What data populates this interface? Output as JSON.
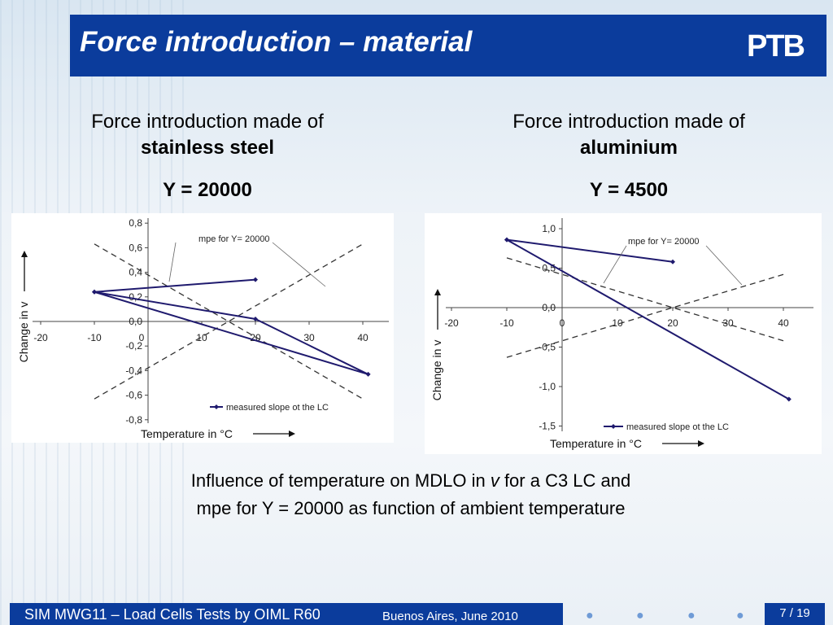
{
  "header": {
    "title": "Force introduction – material",
    "logo": "PTB"
  },
  "left": {
    "caption_line1": "Force introduction made of",
    "caption_line2": "stainless steel",
    "y_value": "Y = 20000"
  },
  "right": {
    "caption_line1": "Force introduction made of",
    "caption_line2": "aluminium",
    "y_value": "Y =  4500"
  },
  "caption": {
    "line1_a": "Influence of temperature on MDLO in ",
    "line1_v": "v",
    "line1_b": " for a C3 LC and",
    "line2": "mpe for Y = 20000 as function of ambient temperature"
  },
  "footer": {
    "left": "SIM MWG11 – Load Cells Tests by OIML R60",
    "mid": "Buenos Aires, June 2010",
    "page": "7 / 19"
  },
  "colors": {
    "title_bar": "#0b3c9c",
    "measured": "#1f1a6e"
  },
  "chart_data": [
    {
      "type": "line",
      "title": "",
      "xlabel": "Temperature in °C",
      "ylabel": "Change in v",
      "xlim": [
        -20,
        45
      ],
      "ylim": [
        -0.8,
        0.8
      ],
      "xticks": [
        -20,
        -10,
        0,
        10,
        20,
        30,
        40
      ],
      "yticks": [
        -0.8,
        -0.6,
        -0.4,
        -0.2,
        0.0,
        0.2,
        0.4,
        0.6,
        0.8
      ],
      "xtick_labels": [
        "-20",
        "-10",
        "0",
        "10",
        "20",
        "30",
        "40"
      ],
      "ytick_labels": [
        "-0,8",
        "-0,6",
        "-0,4",
        "-0,2",
        "0,0",
        "0,2",
        "0,4",
        "0,6",
        "0,8"
      ],
      "mpe_label": "mpe for Y= 20000",
      "series": [
        {
          "name": "measured slope ot the LC",
          "x": [
            20,
            -10,
            20,
            41,
            -10
          ],
          "y": [
            0.34,
            0.24,
            0.02,
            -0.43,
            0.24
          ]
        },
        {
          "name": "",
          "x": [
            -10,
            40
          ],
          "y": [
            0.63,
            -0.63
          ]
        },
        {
          "name": "",
          "x": [
            -10,
            40
          ],
          "y": [
            -0.63,
            0.63
          ]
        }
      ]
    },
    {
      "type": "line",
      "title": "",
      "xlabel": "Temperature in °C",
      "ylabel": "Change in v",
      "xlim": [
        -20,
        45
      ],
      "ylim": [
        -1.5,
        1.0
      ],
      "xticks": [
        -20,
        -10,
        0,
        10,
        20,
        30,
        40
      ],
      "yticks": [
        -1.5,
        -1.0,
        -0.5,
        0.0,
        0.5,
        1.0
      ],
      "xtick_labels": [
        "-20",
        "-10",
        "0",
        "10",
        "20",
        "30",
        "40"
      ],
      "ytick_labels": [
        "-1,5",
        "-1,0",
        "-0,5",
        "0,0",
        "0,5",
        "1,0"
      ],
      "mpe_label": "mpe for Y= 20000",
      "series": [
        {
          "name": "measured slope ot the LC",
          "x": [
            20,
            -10,
            41,
            -10
          ],
          "y": [
            0.58,
            0.86,
            -1.16,
            0.86
          ]
        },
        {
          "name": "",
          "x": [
            -10,
            40
          ],
          "y": [
            0.63,
            -0.42
          ]
        },
        {
          "name": "",
          "x": [
            -10,
            40
          ],
          "y": [
            -0.63,
            0.42
          ]
        }
      ]
    }
  ]
}
